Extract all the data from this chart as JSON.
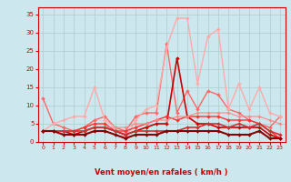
{
  "x": [
    0,
    1,
    2,
    3,
    4,
    5,
    6,
    7,
    8,
    9,
    10,
    11,
    12,
    13,
    14,
    15,
    16,
    17,
    18,
    19,
    20,
    21,
    22,
    23
  ],
  "series": [
    {
      "color": "#ff6666",
      "lw": 1.0,
      "marker": "D",
      "ms": 2.0,
      "values": [
        12,
        5,
        4,
        3,
        4,
        6,
        7,
        4,
        3,
        7,
        8,
        8,
        27,
        8,
        14,
        9,
        14,
        13,
        9,
        8,
        6,
        5,
        4,
        7
      ]
    },
    {
      "color": "#ffaaaa",
      "lw": 1.0,
      "marker": "D",
      "ms": 2.0,
      "values": [
        3,
        5,
        6,
        7,
        7,
        15,
        6,
        4,
        1,
        6,
        9,
        10,
        26,
        34,
        34,
        16,
        29,
        31,
        9,
        16,
        9,
        15,
        8,
        7
      ]
    },
    {
      "color": "#cc0000",
      "lw": 1.2,
      "marker": "D",
      "ms": 2.0,
      "values": [
        3,
        3,
        3,
        2,
        3,
        4,
        4,
        3,
        2,
        3,
        4,
        5,
        5,
        23,
        7,
        5,
        5,
        4,
        4,
        4,
        4,
        4,
        2,
        1
      ]
    },
    {
      "color": "#ff3333",
      "lw": 1.0,
      "marker": "D",
      "ms": 2.0,
      "values": [
        3,
        3,
        3,
        3,
        4,
        5,
        5,
        3,
        3,
        4,
        5,
        6,
        7,
        6,
        7,
        7,
        7,
        7,
        6,
        6,
        6,
        5,
        3,
        1
      ]
    },
    {
      "color": "#ff8888",
      "lw": 0.8,
      "marker": "D",
      "ms": 1.8,
      "values": [
        3,
        3,
        3,
        3,
        3,
        4,
        4,
        4,
        4,
        5,
        5,
        6,
        6,
        7,
        7,
        8,
        8,
        8,
        8,
        7,
        7,
        7,
        6,
        5
      ]
    },
    {
      "color": "#cc3333",
      "lw": 1.2,
      "marker": "D",
      "ms": 2.0,
      "values": [
        3,
        3,
        3,
        3,
        3,
        4,
        4,
        3,
        2,
        3,
        3,
        3,
        3,
        3,
        4,
        4,
        5,
        5,
        4,
        5,
        4,
        5,
        3,
        2
      ]
    },
    {
      "color": "#880000",
      "lw": 1.5,
      "marker": "D",
      "ms": 2.0,
      "values": [
        3,
        3,
        2,
        2,
        2,
        3,
        3,
        2,
        1,
        2,
        2,
        2,
        3,
        3,
        3,
        3,
        3,
        3,
        2,
        2,
        2,
        3,
        1,
        1
      ]
    }
  ],
  "xlabel": "Vent moyen/en rafales ( km/h )",
  "xlim": [
    -0.5,
    23.5
  ],
  "ylim": [
    0,
    37
  ],
  "yticks": [
    0,
    5,
    10,
    15,
    20,
    25,
    30,
    35
  ],
  "xticks": [
    0,
    1,
    2,
    3,
    4,
    5,
    6,
    7,
    8,
    9,
    10,
    11,
    12,
    13,
    14,
    15,
    16,
    17,
    18,
    19,
    20,
    21,
    22,
    23
  ],
  "bg_color": "#cce8ee",
  "grid_color": "#aacccc",
  "tick_color": "#cc0000",
  "label_color": "#cc0000",
  "arrows": [
    "→",
    "←",
    "→",
    "↙",
    "←",
    "←",
    "←",
    "↗",
    "↗",
    "↗",
    "↗",
    "↗",
    "↗",
    "→",
    "↗",
    "→",
    "←",
    "↗",
    "↙",
    "↗",
    "→",
    "←",
    "↗",
    "↗"
  ]
}
